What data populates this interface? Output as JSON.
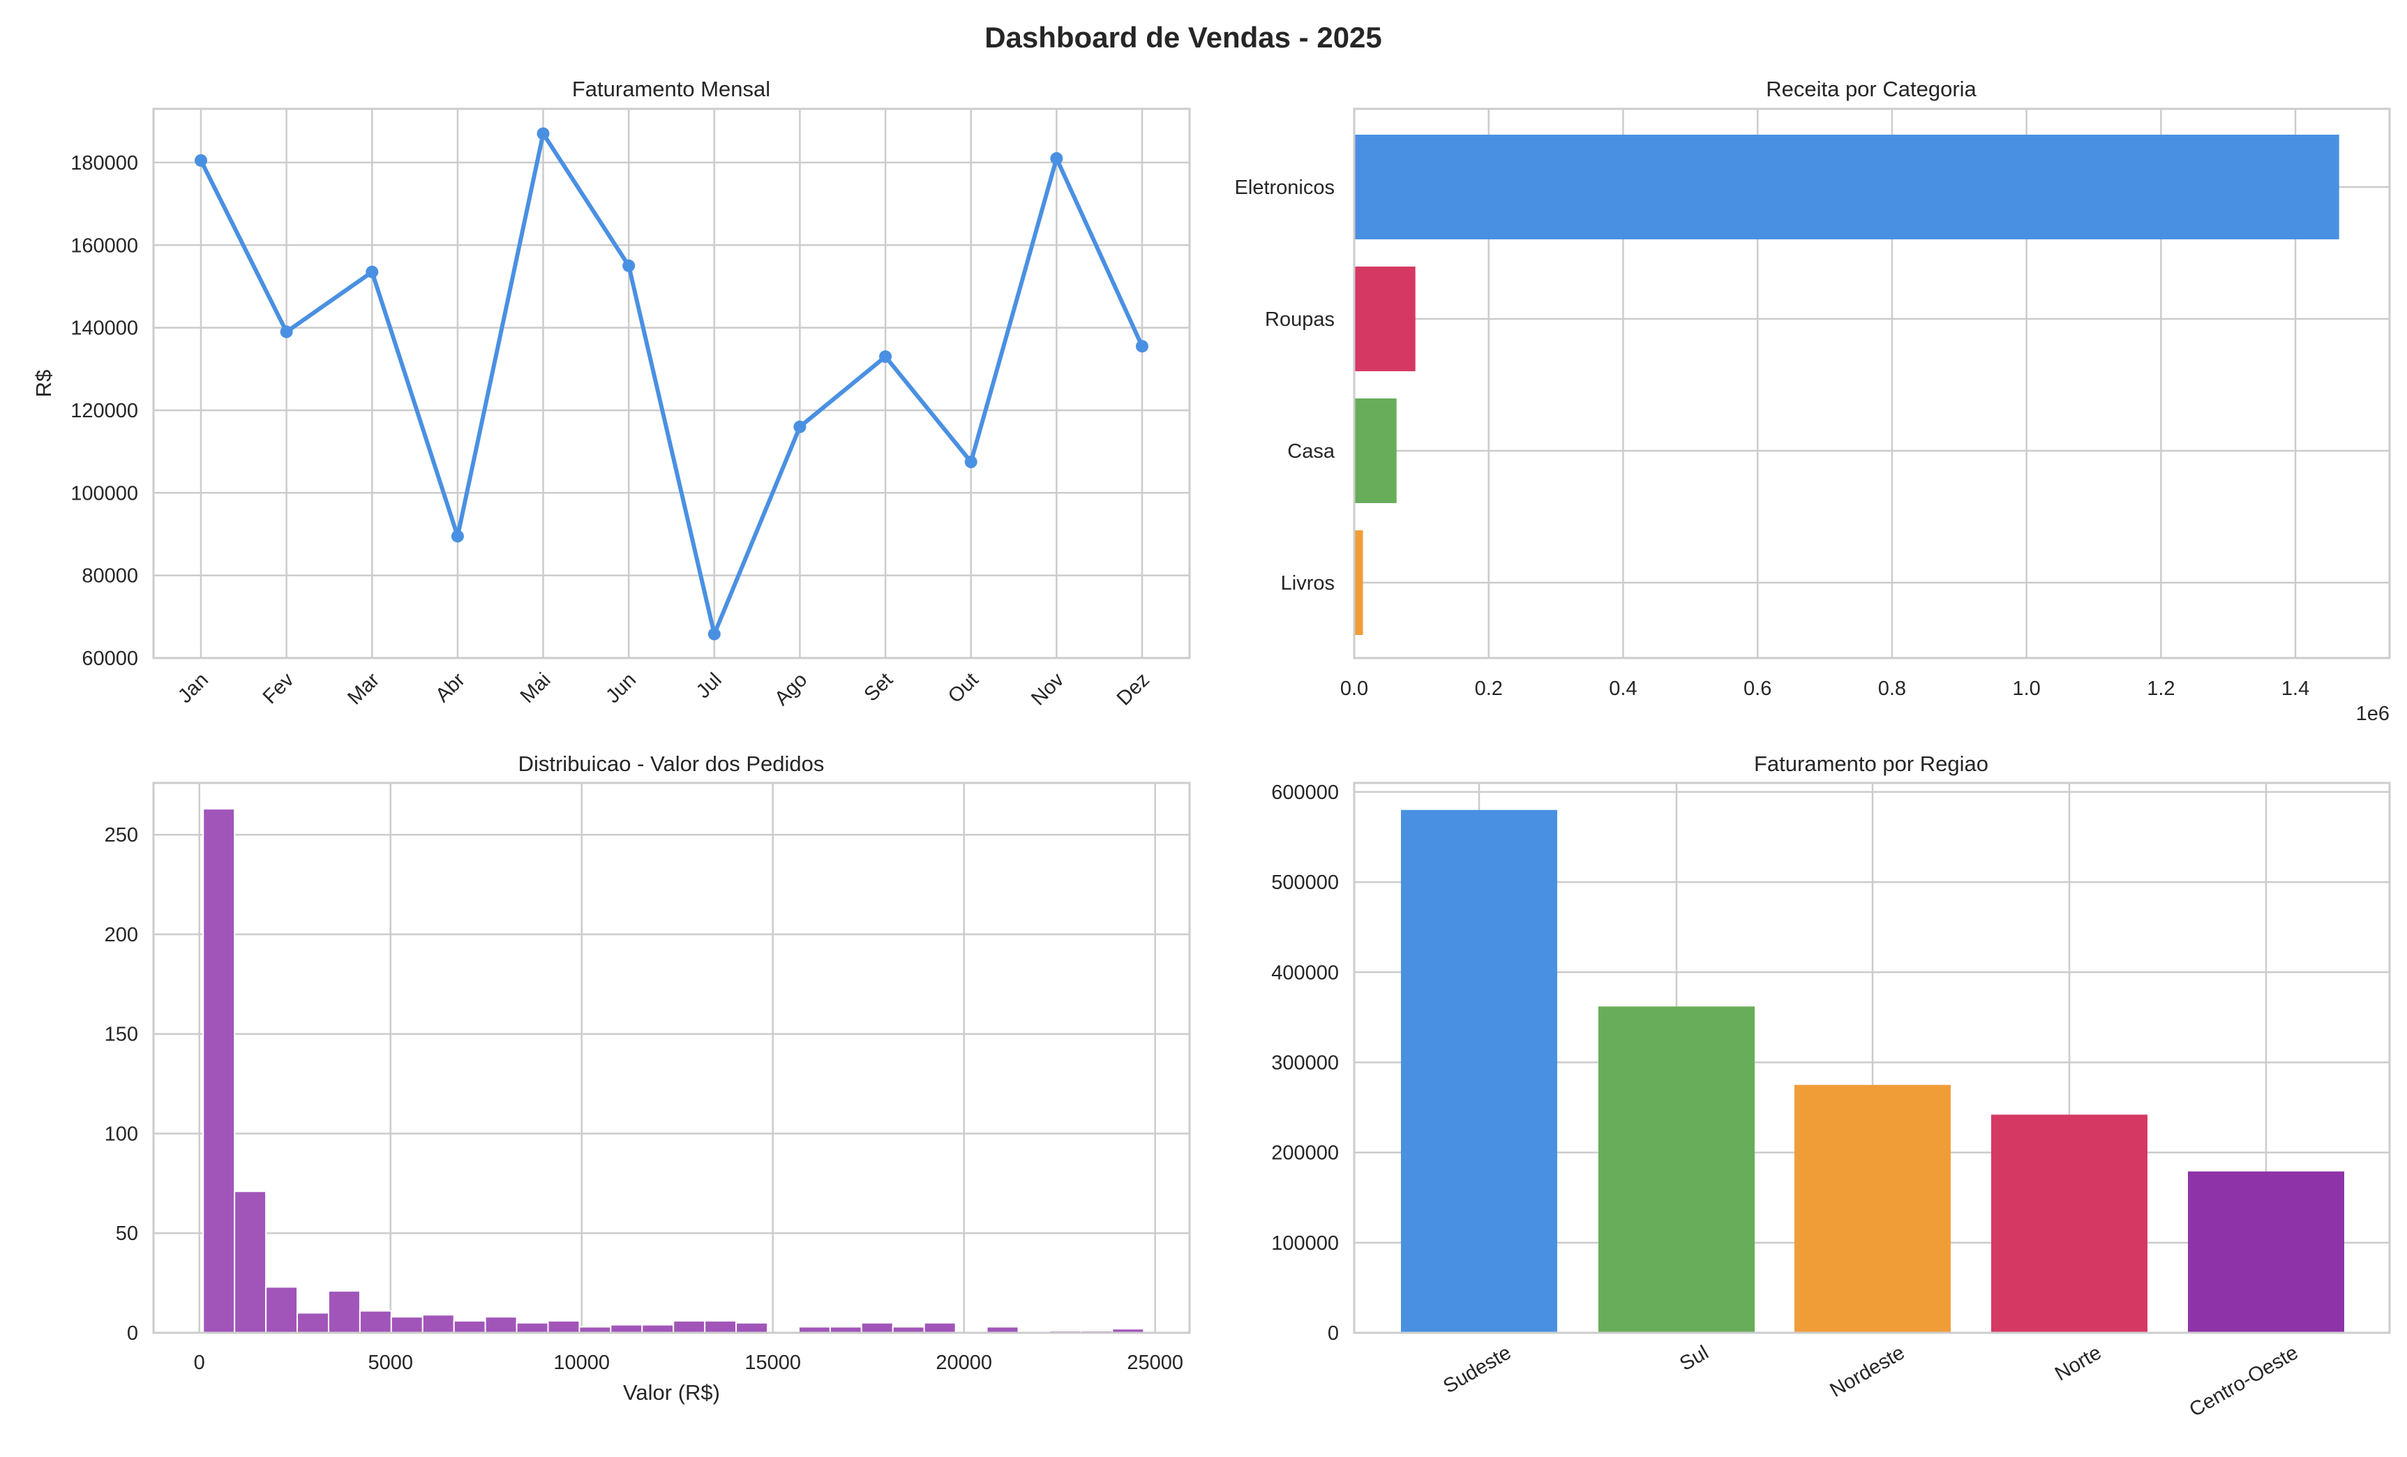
{
  "title": "Dashboard de Vendas - 2025",
  "chart_data": [
    {
      "type": "line",
      "title": "Faturamento Mensal",
      "xlabel": "",
      "ylabel": "R$",
      "categories": [
        "Jan",
        "Fev",
        "Mar",
        "Abr",
        "Mai",
        "Jun",
        "Jul",
        "Ago",
        "Set",
        "Out",
        "Nov",
        "Dez"
      ],
      "values": [
        180500,
        139000,
        153500,
        89500,
        187000,
        155000,
        65800,
        116000,
        133000,
        107500,
        181000,
        135500
      ],
      "ylim": [
        60000,
        193000
      ],
      "yticks": [
        60000,
        80000,
        100000,
        120000,
        140000,
        160000,
        180000
      ],
      "color": "#4a90e2",
      "markers": true,
      "grid": true
    },
    {
      "type": "bar",
      "orientation": "horizontal",
      "title": "Receita por Categoria",
      "xlabel": "",
      "ylabel": "",
      "categories": [
        "Eletronicos",
        "Roupas",
        "Casa",
        "Livros"
      ],
      "values": [
        1465000,
        91000,
        63000,
        13000
      ],
      "colors": [
        "#4a90e2",
        "#d63864",
        "#68ad5a",
        "#f09d38"
      ],
      "xlim": [
        0,
        1540000
      ],
      "xticks": [
        0,
        200000,
        400000,
        600000,
        800000,
        1000000,
        1200000,
        1400000
      ],
      "xtick_labels": [
        "0.0",
        "0.2",
        "0.4",
        "0.6",
        "0.8",
        "1.0",
        "1.2",
        "1.4"
      ],
      "offset_text": "1e6",
      "grid": true
    },
    {
      "type": "histogram",
      "title": "Distribuicao - Valor dos Pedidos",
      "xlabel": "Valor (R$)",
      "ylabel": "",
      "bin_start": 100,
      "bin_width": 820,
      "counts": [
        263,
        71,
        23,
        10,
        21,
        11,
        8,
        9,
        6,
        8,
        5,
        6,
        3,
        4,
        4,
        6,
        6,
        5,
        0,
        3,
        3,
        5,
        3,
        5,
        0,
        3,
        0,
        1,
        1,
        2
      ],
      "xlim": [
        -1200,
        25900
      ],
      "ylim": [
        0,
        276
      ],
      "xticks": [
        0,
        5000,
        10000,
        15000,
        20000,
        25000
      ],
      "yticks": [
        0,
        50,
        100,
        150,
        200,
        250
      ],
      "color": "#a155b9",
      "grid": true
    },
    {
      "type": "bar",
      "title": "Faturamento por Regiao",
      "xlabel": "",
      "ylabel": "",
      "categories": [
        "Sudeste",
        "Sul",
        "Nordeste",
        "Norte",
        "Centro-Oeste"
      ],
      "values": [
        580000,
        362000,
        275000,
        242000,
        179000
      ],
      "colors": [
        "#4a90e2",
        "#68ad5a",
        "#f09d38",
        "#d63864",
        "#8e33a8"
      ],
      "ylim": [
        0,
        610000
      ],
      "yticks": [
        0,
        100000,
        200000,
        300000,
        400000,
        500000,
        600000
      ],
      "grid": true
    }
  ]
}
